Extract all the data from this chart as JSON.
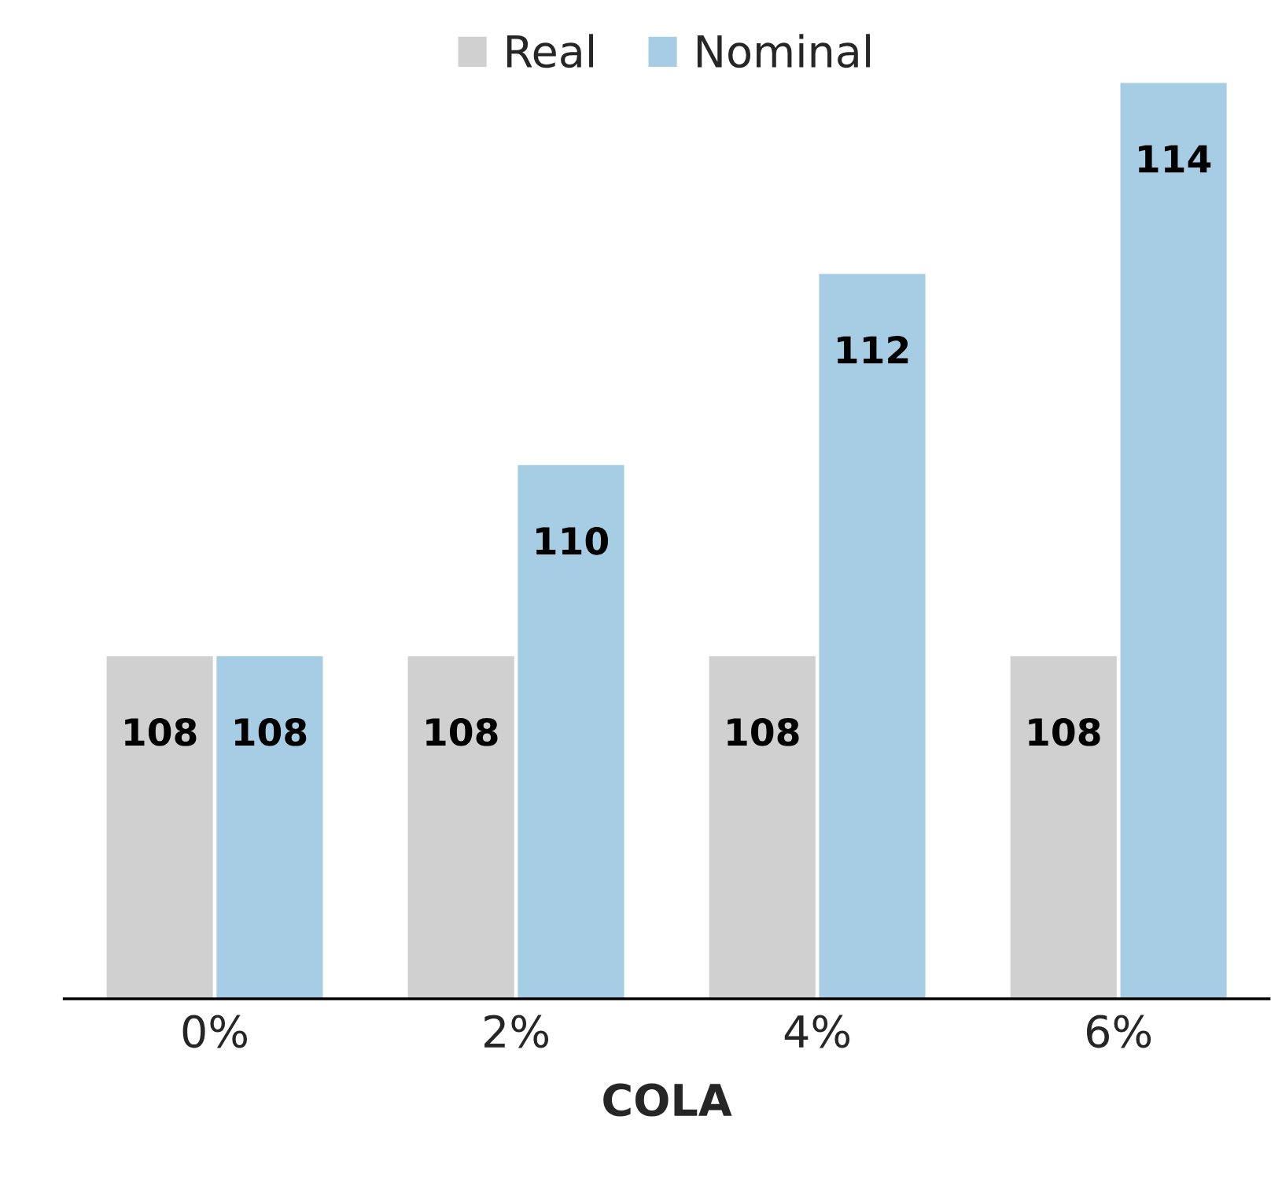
{
  "chart_data": {
    "type": "bar",
    "xlabel": "COLA",
    "categories": [
      "0%",
      "2%",
      "4%",
      "6%"
    ],
    "series": [
      {
        "name": "Real",
        "color": "#d0d0d0",
        "values": [
          108,
          108,
          108,
          108
        ]
      },
      {
        "name": "Nominal",
        "color": "#a6cde3",
        "values": [
          108,
          110,
          112,
          114
        ]
      }
    ],
    "tick_labels": "x",
    "data_labels": true,
    "legend": "top",
    "grid": false
  }
}
